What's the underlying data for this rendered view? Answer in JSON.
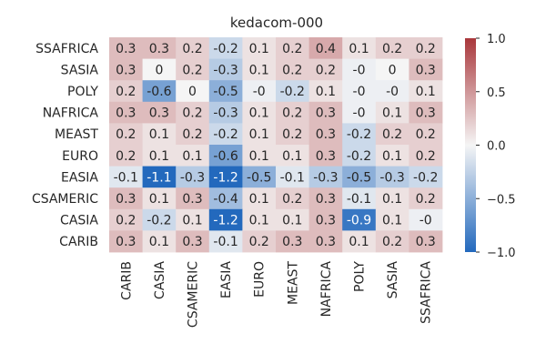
{
  "chart_data": {
    "type": "heatmap",
    "title": "kedacom-000",
    "xlabel": "",
    "ylabel": "",
    "x_categories": [
      "CARIB",
      "CASIA",
      "CSAMERIC",
      "EASIA",
      "EURO",
      "MEAST",
      "NAFRICA",
      "POLY",
      "SASIA",
      "SSAFRICA"
    ],
    "y_categories": [
      "SSAFRICA",
      "SASIA",
      "POLY",
      "NAFRICA",
      "MEAST",
      "EURO",
      "EASIA",
      "CSAMERIC",
      "CASIA",
      "CARIB"
    ],
    "values": [
      [
        0.3,
        0.3,
        0.2,
        -0.2,
        0.1,
        0.2,
        0.4,
        0.1,
        0.2,
        0.2
      ],
      [
        0.3,
        0,
        0.2,
        -0.3,
        0.1,
        0.2,
        0.2,
        -0.04,
        0,
        0.3
      ],
      [
        0.2,
        -0.6,
        0,
        -0.5,
        -0.04,
        -0.2,
        0.1,
        -0.04,
        -0.04,
        0.1
      ],
      [
        0.3,
        0.3,
        0.2,
        -0.3,
        0.1,
        0.2,
        0.3,
        -0.04,
        0.1,
        0.3
      ],
      [
        0.2,
        0.1,
        0.2,
        -0.2,
        0.1,
        0.2,
        0.3,
        -0.2,
        0.2,
        0.2
      ],
      [
        0.2,
        0.1,
        0.1,
        -0.6,
        0.1,
        0.1,
        0.3,
        -0.2,
        0.1,
        0.2
      ],
      [
        -0.1,
        -1.1,
        -0.3,
        -1.2,
        -0.5,
        -0.1,
        -0.3,
        -0.5,
        -0.3,
        -0.2
      ],
      [
        0.3,
        0.1,
        0.3,
        -0.4,
        0.1,
        0.2,
        0.3,
        -0.1,
        0.1,
        0.2
      ],
      [
        0.2,
        -0.2,
        0.1,
        -1.2,
        0.1,
        0.1,
        0.3,
        -0.9,
        0.1,
        -0.04
      ],
      [
        0.3,
        0.1,
        0.3,
        -0.1,
        0.2,
        0.3,
        0.3,
        0.1,
        0.2,
        0.3
      ]
    ],
    "cell_labels": [
      [
        "0.3",
        "0.3",
        "0.2",
        "-0.2",
        "0.1",
        "0.2",
        "0.4",
        "0.1",
        "0.2",
        "0.2"
      ],
      [
        "0.3",
        "0",
        "0.2",
        "-0.3",
        "0.1",
        "0.2",
        "0.2",
        "-0",
        "0",
        "0.3"
      ],
      [
        "0.2",
        "-0.6",
        "0",
        "-0.5",
        "-0",
        "-0.2",
        "0.1",
        "-0",
        "-0",
        "0.1"
      ],
      [
        "0.3",
        "0.3",
        "0.2",
        "-0.3",
        "0.1",
        "0.2",
        "0.3",
        "-0",
        "0.1",
        "0.3"
      ],
      [
        "0.2",
        "0.1",
        "0.2",
        "-0.2",
        "0.1",
        "0.2",
        "0.3",
        "-0.2",
        "0.2",
        "0.2"
      ],
      [
        "0.2",
        "0.1",
        "0.1",
        "-0.6",
        "0.1",
        "0.1",
        "0.3",
        "-0.2",
        "0.1",
        "0.2"
      ],
      [
        "-0.1",
        "-1.1",
        "-0.3",
        "-1.2",
        "-0.5",
        "-0.1",
        "-0.3",
        "-0.5",
        "-0.3",
        "-0.2"
      ],
      [
        "0.3",
        "0.1",
        "0.3",
        "-0.4",
        "0.1",
        "0.2",
        "0.3",
        "-0.1",
        "0.1",
        "0.2"
      ],
      [
        "0.2",
        "-0.2",
        "0.1",
        "-1.2",
        "0.1",
        "0.1",
        "0.3",
        "-0.9",
        "0.1",
        "-0"
      ],
      [
        "0.3",
        "0.1",
        "0.3",
        "-0.1",
        "0.2",
        "0.3",
        "0.3",
        "0.1",
        "0.2",
        "0.3"
      ]
    ],
    "color_range": [
      -1.0,
      1.0
    ],
    "colormap": "vlag",
    "colormap_stops": [
      "#2369bd",
      "#f5f5f5",
      "#a9373b"
    ],
    "colorbar_ticks": [
      1.0,
      0.5,
      0.0,
      -0.5,
      -1.0
    ],
    "colorbar_tick_labels": [
      "1.0",
      "0.5",
      "0.0",
      "−0.5",
      "−1.0"
    ],
    "legend": "colorbar-right",
    "grid": false
  }
}
